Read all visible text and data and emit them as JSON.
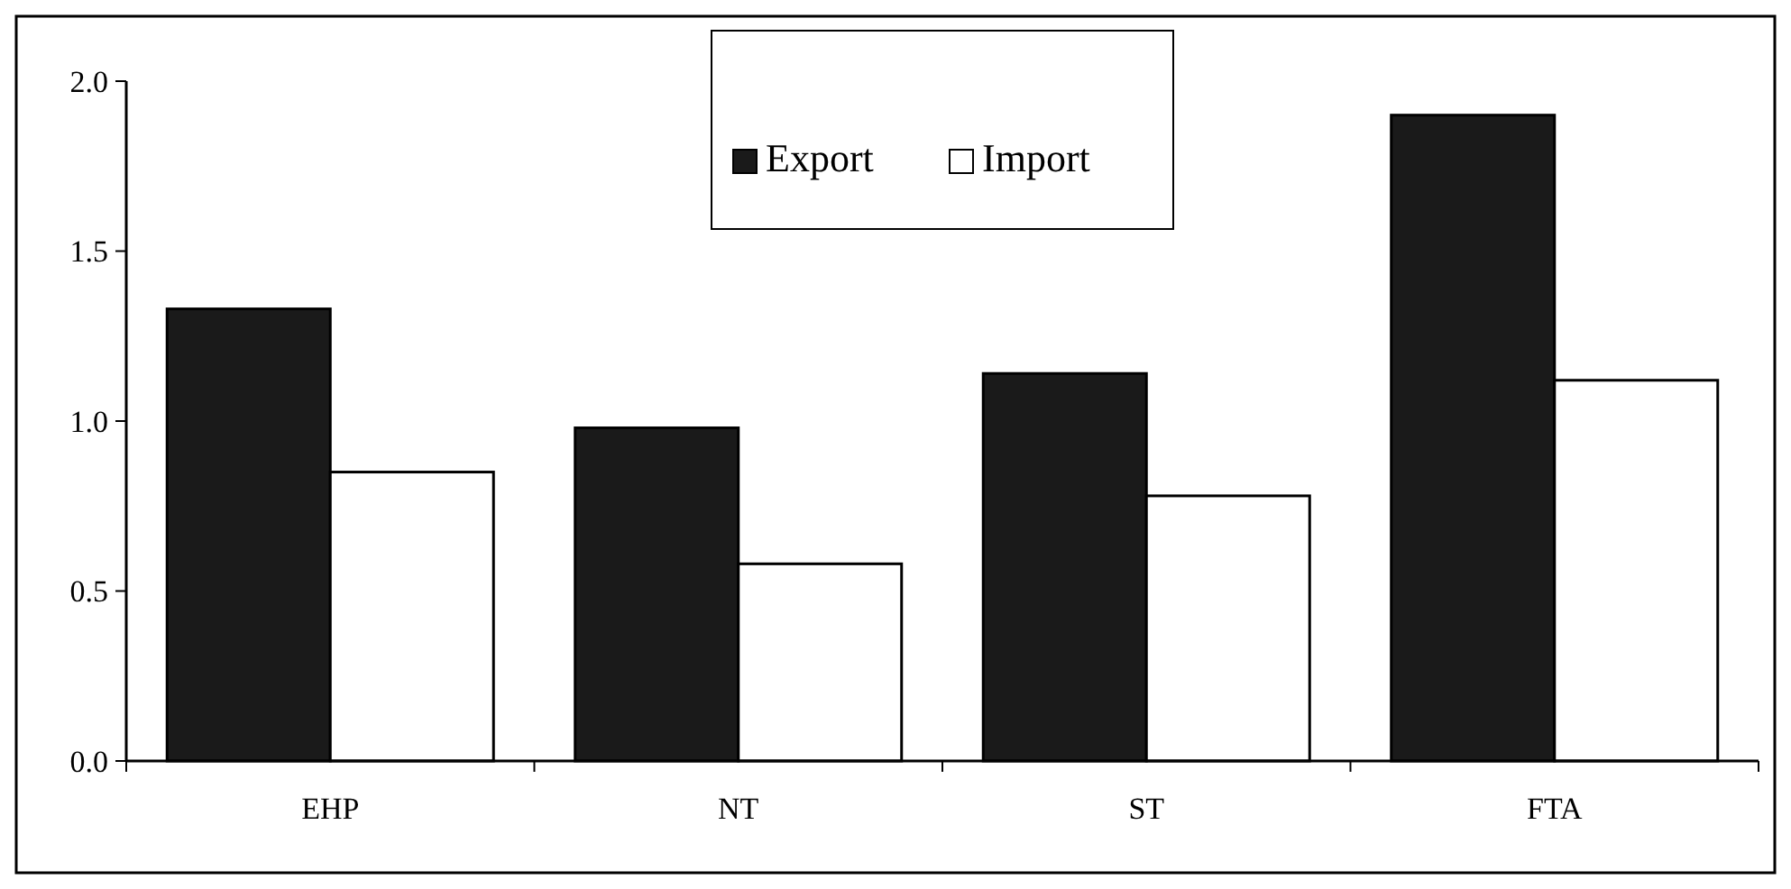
{
  "chart_data": {
    "type": "bar",
    "categories": [
      "EHP",
      "NT",
      "ST",
      "FTA"
    ],
    "series": [
      {
        "name": "Export",
        "color": "#1a1a1a",
        "values": [
          1.33,
          0.98,
          1.14,
          1.9
        ]
      },
      {
        "name": "Import",
        "color": "#ffffff",
        "values": [
          0.85,
          0.58,
          0.78,
          1.12
        ]
      }
    ],
    "ylim": [
      0,
      2
    ],
    "yticks": [
      {
        "value": 0,
        "label": "0.0"
      },
      {
        "value": 0.5,
        "label": "0.5"
      },
      {
        "value": 1,
        "label": "1.0"
      },
      {
        "value": 1.5,
        "label": "1.5"
      },
      {
        "value": 2,
        "label": "2.0"
      }
    ],
    "grid": false,
    "legend": "top"
  }
}
